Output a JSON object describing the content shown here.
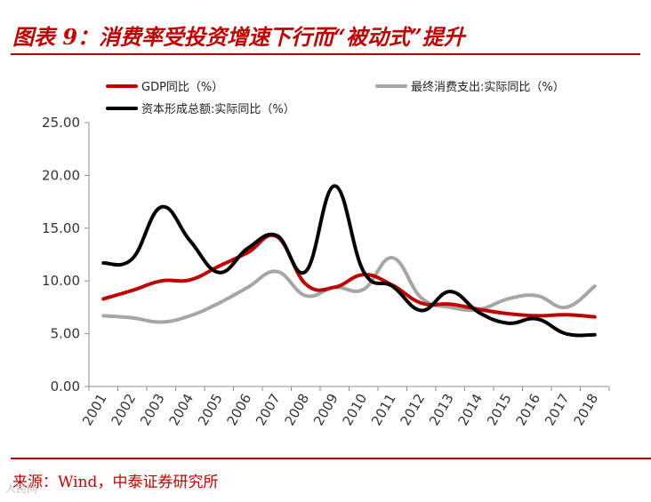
{
  "header": {
    "title": "图表 9：消费率受投资增速下行而“被动式”提升"
  },
  "footer": {
    "source": "来源：Wind，中泰证券研究所",
    "watermark": "人民网"
  },
  "colors": {
    "accent": "#c00000",
    "gdp": "#c00000",
    "consumption": "#a6a6a6",
    "capital": "#000000"
  },
  "chart_data": {
    "type": "line",
    "title": "",
    "xlabel": "",
    "ylabel": "",
    "categories": [
      "2001",
      "2002",
      "2003",
      "2004",
      "2005",
      "2006",
      "2007",
      "2008",
      "2009",
      "2010",
      "2011",
      "2012",
      "2013",
      "2014",
      "2015",
      "2016",
      "2017",
      "2018"
    ],
    "ylim": [
      0,
      25
    ],
    "yticks": [
      "0.00",
      "5.00",
      "10.00",
      "15.00",
      "20.00",
      "25.00"
    ],
    "grid": false,
    "legend_position": "top",
    "series": [
      {
        "name": "GDP同比（%）",
        "color": "#c00000",
        "values": [
          8.3,
          9.1,
          10.0,
          10.1,
          11.4,
          12.7,
          14.2,
          9.7,
          9.4,
          10.6,
          9.6,
          7.9,
          7.8,
          7.3,
          6.9,
          6.7,
          6.8,
          6.6
        ]
      },
      {
        "name": "最终消费支出:实际同比（%）",
        "color": "#a6a6a6",
        "values": [
          6.7,
          6.5,
          6.1,
          6.7,
          7.9,
          9.4,
          10.9,
          8.6,
          9.4,
          9.2,
          12.2,
          8.4,
          7.5,
          7.3,
          8.3,
          8.6,
          7.5,
          9.5
        ]
      },
      {
        "name": "资本形成总额:实际同比（%）",
        "color": "#000000",
        "values": [
          11.7,
          12.1,
          17.0,
          13.8,
          10.8,
          13.1,
          14.3,
          10.9,
          19.0,
          10.9,
          9.5,
          7.2,
          9.0,
          7.0,
          6.0,
          6.4,
          5.0,
          4.9
        ]
      }
    ]
  }
}
